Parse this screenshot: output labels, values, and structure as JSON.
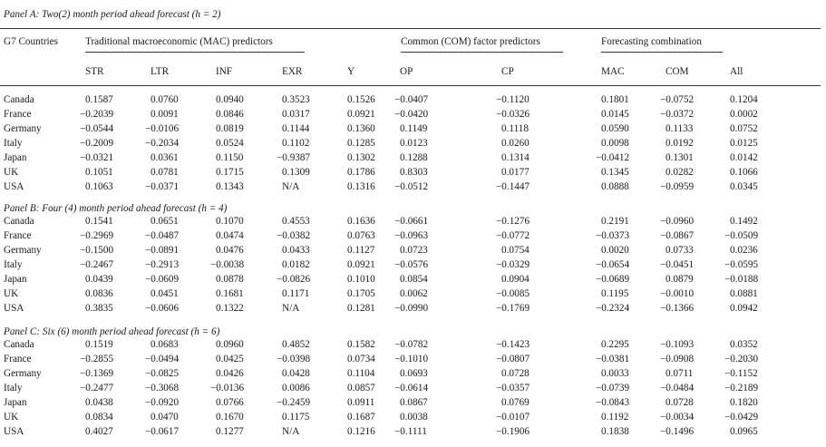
{
  "panels": [
    {
      "title": "Panel A: Two(2) month period ahead forecast (h = 2)",
      "rows": [
        {
          "country": "Canada",
          "values": [
            "0.1587",
            "0.0760",
            "0.0940",
            "0.3523",
            "0.1526",
            "−0.0407",
            "−0.1120",
            "0.1801",
            "−0.0752",
            "0.1204"
          ]
        },
        {
          "country": "France",
          "values": [
            "−0.2039",
            "0.0091",
            "0.0846",
            "0.0317",
            "0.0921",
            "−0.0420",
            "−0.0326",
            "0.0145",
            "−0.0372",
            "0.0002"
          ]
        },
        {
          "country": "Germany",
          "values": [
            "−0.0544",
            "−0.0106",
            "0.0819",
            "0.1144",
            "0.1360",
            "0.1149",
            "0.1118",
            "0.0590",
            "0.1133",
            "0.0752"
          ]
        },
        {
          "country": "Italy",
          "values": [
            "−0.2009",
            "−0.2034",
            "0.0524",
            "0.1102",
            "0.1285",
            "0.0123",
            "0.0260",
            "0.0098",
            "0.0192",
            "0.0125"
          ]
        },
        {
          "country": "Japan",
          "values": [
            "−0.0321",
            "0.0361",
            "0.1150",
            "−0.9387",
            "0.1302",
            "0.1288",
            "0.1314",
            "−0.0412",
            "0.1301",
            "0.0142"
          ]
        },
        {
          "country": "UK",
          "values": [
            "0.1051",
            "0.0781",
            "0.1715",
            "0.1309",
            "0.1786",
            "0.8303",
            "0.0177",
            "0.1345",
            "0.0282",
            "0.1066"
          ]
        },
        {
          "country": "USA",
          "values": [
            "0.1063",
            "−0.0371",
            "0.1343",
            "N/A",
            "0.1316",
            "−0.0512",
            "−0.1447",
            "0.0888",
            "−0.0959",
            "0.0345"
          ]
        }
      ]
    },
    {
      "title": "Panel B: Four (4) month period ahead forecast (h = 4)",
      "rows": [
        {
          "country": "Canada",
          "values": [
            "0.1541",
            "0.0651",
            "0.1070",
            "0.4553",
            "0.1636",
            "−0.0661",
            "−0.1276",
            "0.2191",
            "−0.0960",
            "0.1492"
          ]
        },
        {
          "country": "France",
          "values": [
            "−0.2969",
            "−0.0487",
            "0.0474",
            "−0.0382",
            "0.0763",
            "−0.0963",
            "−0.0772",
            "−0.0373",
            "−0.0867",
            "−0.0509"
          ]
        },
        {
          "country": "Germany",
          "values": [
            "−0.1500",
            "−0.0891",
            "0.0476",
            "0.0433",
            "0.1127",
            "0.0723",
            "0.0754",
            "0.0020",
            "0.0733",
            "0.0236"
          ]
        },
        {
          "country": "Italy",
          "values": [
            "−0.2467",
            "−0.2913",
            "−0.0038",
            "0.0182",
            "0.0921",
            "−0.0576",
            "−0.0329",
            "−0.0654",
            "−0.0451",
            "−0.0595"
          ]
        },
        {
          "country": "Japan",
          "values": [
            "0.0439",
            "−0.0609",
            "0.0878",
            "−0.0826",
            "0.1010",
            "0.0854",
            "0.0904",
            "−0.0689",
            "0.0879",
            "−0.0188"
          ]
        },
        {
          "country": "UK",
          "values": [
            "0.0836",
            "0.0451",
            "0.1681",
            "0.1171",
            "0.1705",
            "0.0062",
            "−0.0085",
            "0.1195",
            "−0.0010",
            "0.0881"
          ]
        },
        {
          "country": "USA",
          "values": [
            "0.3835",
            "−0.0606",
            "0.1322",
            "N/A",
            "0.1281",
            "−0.0990",
            "−0.1769",
            "−0.2324",
            "−0.1366",
            "0.0942"
          ]
        }
      ]
    },
    {
      "title": "Panel C: Six (6) month period ahead forecast (h = 6)",
      "rows": [
        {
          "country": "Canada",
          "values": [
            "0.1519",
            "0.0683",
            "0.0960",
            "0.4852",
            "0.1582",
            "−0.0782",
            "−0.1423",
            "0.2295",
            "−0.1093",
            "0.0352"
          ]
        },
        {
          "country": "France",
          "values": [
            "−0.2855",
            "−0.0494",
            "0.0425",
            "−0.0398",
            "0.0734",
            "−0.1010",
            "−0.0807",
            "−0.0381",
            "−0.0908",
            "−0.2030"
          ]
        },
        {
          "country": "Germany",
          "values": [
            "−0.1369",
            "−0.0825",
            "0.0426",
            "0.0428",
            "0.1104",
            "0.0693",
            "0.0728",
            "0.0033",
            "0.0711",
            "−0.1152"
          ]
        },
        {
          "country": "Italy",
          "values": [
            "−0.2477",
            "−0.3068",
            "−0.0136",
            "0.0086",
            "0.0857",
            "−0.0614",
            "−0.0357",
            "−0.0739",
            "−0.0484",
            "−0.2189"
          ]
        },
        {
          "country": "Japan",
          "values": [
            "0.0438",
            "−0.0920",
            "0.0766",
            "−0.2459",
            "0.0911",
            "0.0867",
            "0.0769",
            "−0.0843",
            "0.0728",
            "0.1820"
          ]
        },
        {
          "country": "UK",
          "values": [
            "0.0834",
            "0.0470",
            "0.1670",
            "0.1175",
            "0.1687",
            "0.0038",
            "−0.0107",
            "0.1192",
            "−0.0034",
            "−0.0429"
          ]
        },
        {
          "country": "USA",
          "values": [
            "0.4027",
            "−0.0617",
            "0.1277",
            "N/A",
            "0.1216",
            "−0.1111",
            "−0.1906",
            "0.1838",
            "−0.1496",
            "0.0965"
          ]
        }
      ]
    }
  ],
  "header": {
    "group_label": "G7 Countries",
    "groups": [
      "Traditional macroeconomic (MAC) predictors",
      "Common (COM) factor predictors",
      "Forecasting combination"
    ],
    "columns": [
      "STR",
      "LTR",
      "INF",
      "EXR",
      "Y",
      "OP",
      "CP",
      "MAC",
      "COM",
      "All"
    ]
  }
}
